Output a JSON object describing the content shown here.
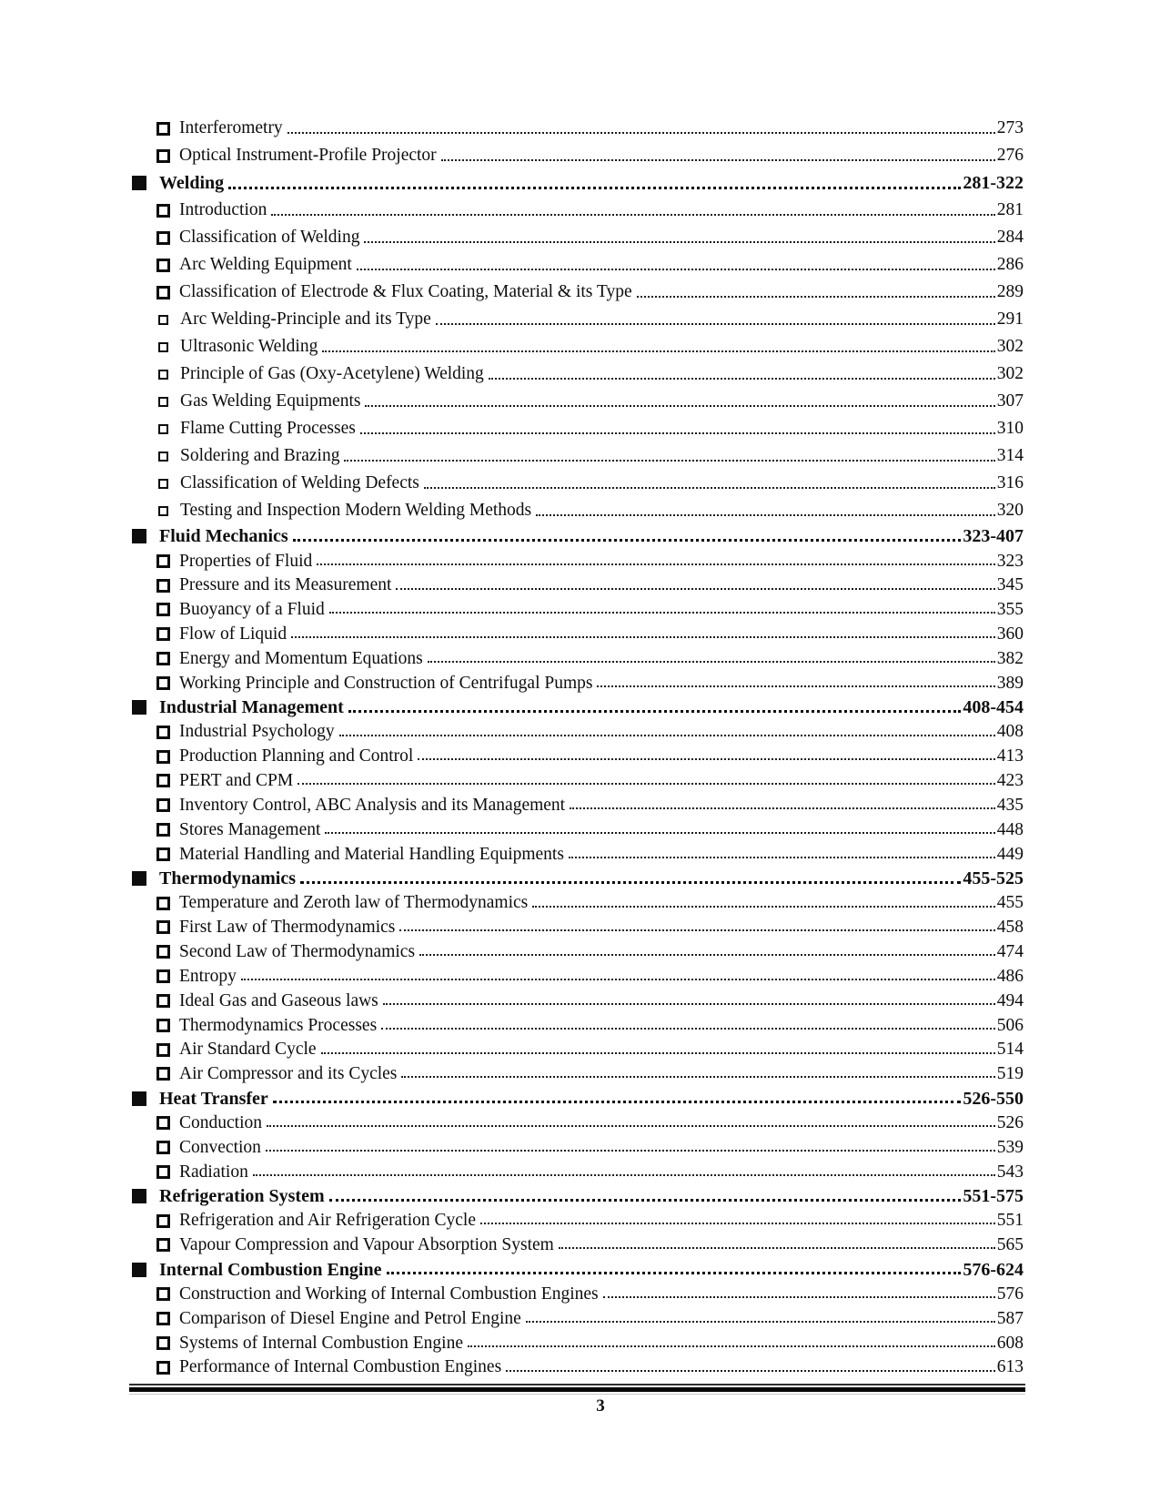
{
  "colors": {
    "ink": "#0d0d0d",
    "background": "#ffffff"
  },
  "footer": {
    "page_number": "3"
  },
  "toc": {
    "rows": [
      {
        "level": "sub",
        "label": "Interferometry",
        "page": "273"
      },
      {
        "level": "sub",
        "label": "Optical Instrument-Profile Projector",
        "page": "276"
      },
      {
        "level": "section",
        "label": "Welding",
        "page": "281-322"
      },
      {
        "level": "sub",
        "label": "Introduction",
        "page": "281"
      },
      {
        "level": "sub",
        "label": "Classification of Welding",
        "page": "284"
      },
      {
        "level": "sub",
        "label": "Arc Welding Equipment",
        "page": "286"
      },
      {
        "level": "sub",
        "label": "Classification of Electrode & Flux Coating, Material & its Type",
        "page": "289"
      },
      {
        "level": "subsmall",
        "label": "Arc Welding-Principle and its Type",
        "page": "291"
      },
      {
        "level": "subsmall",
        "label": "Ultrasonic Welding",
        "page": "302"
      },
      {
        "level": "subsmall",
        "label": "Principle of Gas (Oxy-Acetylene) Welding",
        "page": "302"
      },
      {
        "level": "subsmall",
        "label": "Gas Welding Equipments",
        "page": "307"
      },
      {
        "level": "subsmall",
        "label": "Flame Cutting Processes",
        "page": "310"
      },
      {
        "level": "subsmall",
        "label": "Soldering and Brazing",
        "page": "314"
      },
      {
        "level": "subsmall",
        "label": "Classification of Welding Defects",
        "page": "316"
      },
      {
        "level": "subsmall",
        "label": "Testing and Inspection Modern Welding Methods",
        "page": "320"
      },
      {
        "level": "section",
        "label": "Fluid Mechanics",
        "page": "323-407"
      },
      {
        "level": "sub",
        "label": "Properties of Fluid",
        "page": "323"
      },
      {
        "level": "sub",
        "label": "Pressure and its Measurement",
        "page": "345"
      },
      {
        "level": "sub",
        "label": "Buoyancy of a Fluid",
        "page": "355"
      },
      {
        "level": "sub",
        "label": "Flow of Liquid",
        "page": "360"
      },
      {
        "level": "sub",
        "label": "Energy and Momentum Equations",
        "page": "382"
      },
      {
        "level": "sub",
        "label": "Working Principle and Construction of Centrifugal Pumps",
        "page": "389"
      },
      {
        "level": "section",
        "label": "Industrial Management",
        "page": "408-454"
      },
      {
        "level": "sub",
        "label": "Industrial Psychology",
        "page": "408"
      },
      {
        "level": "sub",
        "label": "Production Planning and Control",
        "page": "413"
      },
      {
        "level": "sub",
        "label": "PERT and CPM",
        "page": "423"
      },
      {
        "level": "sub",
        "label": "Inventory Control, ABC Analysis and its Management",
        "page": "435"
      },
      {
        "level": "sub",
        "label": "Stores Management",
        "page": "448"
      },
      {
        "level": "sub",
        "label": "Material Handling and Material Handling Equipments",
        "page": "449"
      },
      {
        "level": "section",
        "label": "Thermodynamics",
        "page": "455-525"
      },
      {
        "level": "sub",
        "label": "Temperature and Zeroth law of Thermodynamics",
        "page": "455"
      },
      {
        "level": "sub",
        "label": "First Law of Thermodynamics",
        "page": "458"
      },
      {
        "level": "sub",
        "label": "Second Law of Thermodynamics",
        "page": "474"
      },
      {
        "level": "sub",
        "label": "Entropy",
        "page": "486"
      },
      {
        "level": "sub",
        "label": "Ideal Gas and Gaseous laws",
        "page": "494"
      },
      {
        "level": "sub",
        "label": "Thermodynamics Processes",
        "page": "506"
      },
      {
        "level": "sub",
        "label": "Air Standard Cycle",
        "page": "514"
      },
      {
        "level": "sub",
        "label": "Air Compressor and its Cycles",
        "page": "519"
      },
      {
        "level": "section",
        "label": "Heat Transfer",
        "page": "526-550"
      },
      {
        "level": "sub",
        "label": "Conduction",
        "page": "526"
      },
      {
        "level": "sub",
        "label": "Convection",
        "page": "539"
      },
      {
        "level": "sub",
        "label": "Radiation",
        "page": "543"
      },
      {
        "level": "section",
        "label": "Refrigeration System",
        "page": "551-575"
      },
      {
        "level": "sub",
        "label": "Refrigeration and Air Refrigeration Cycle",
        "page": "551"
      },
      {
        "level": "sub",
        "label": "Vapour Compression and Vapour Absorption System",
        "page": "565"
      },
      {
        "level": "section",
        "label": "Internal Combustion Engine",
        "page": "576-624"
      },
      {
        "level": "sub",
        "label": "Construction and Working of Internal Combustion Engines",
        "page": "576"
      },
      {
        "level": "sub",
        "label": "Comparison of Diesel Engine and Petrol Engine",
        "page": "587"
      },
      {
        "level": "sub",
        "label": "Systems of Internal Combustion Engine",
        "page": "608"
      },
      {
        "level": "sub",
        "label": "Performance of Internal Combustion Engines",
        "page": "613"
      }
    ]
  }
}
